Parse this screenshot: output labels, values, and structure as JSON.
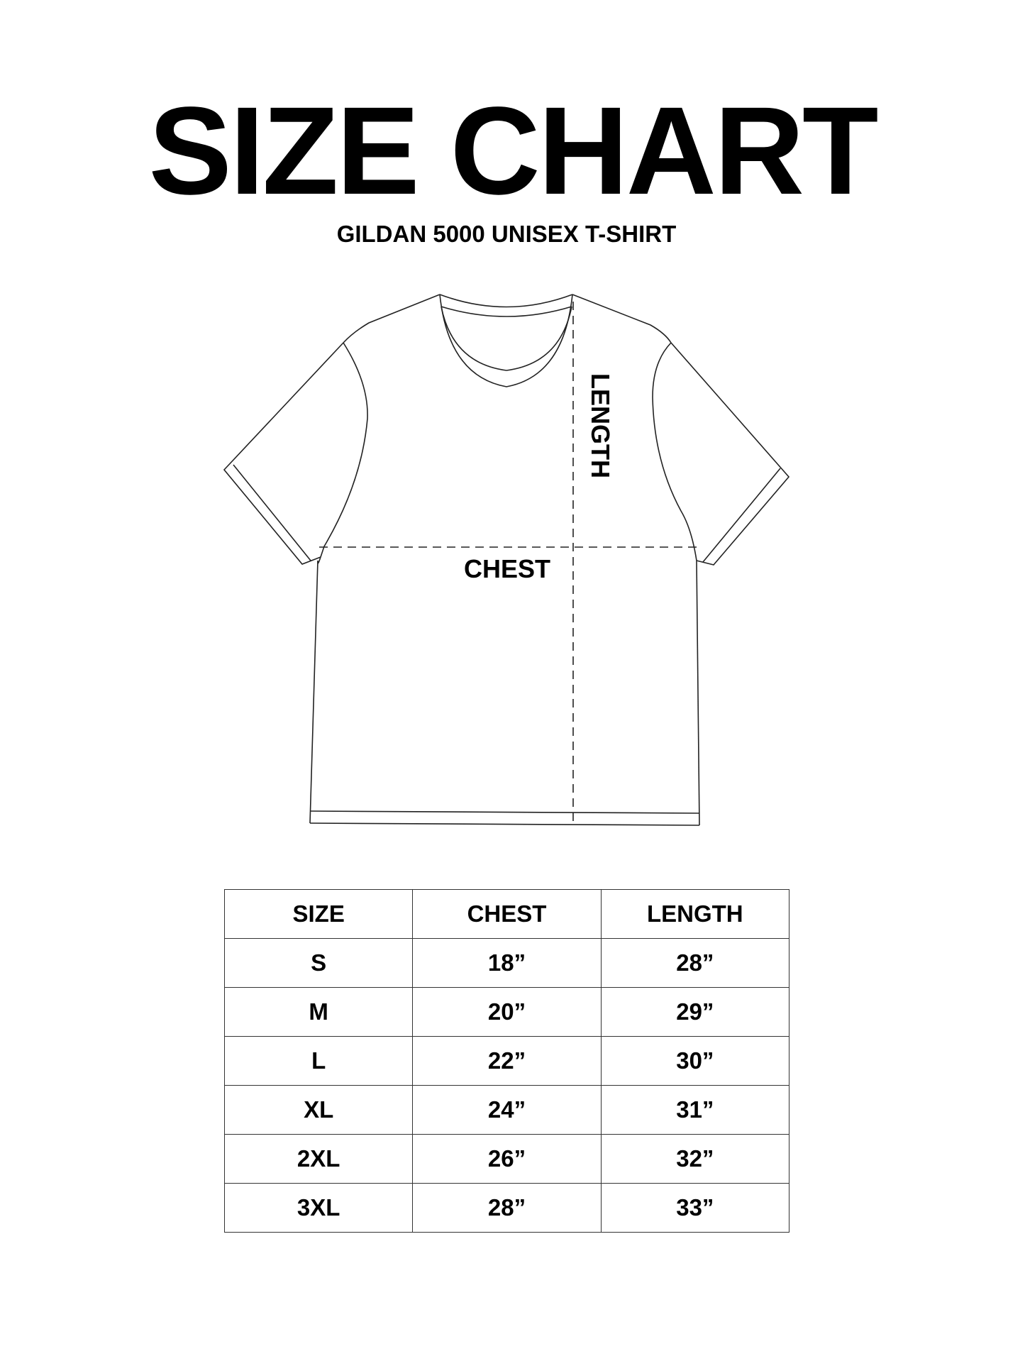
{
  "title": "SIZE CHART",
  "subtitle": "GILDAN 5000 UNISEX T-SHIRT",
  "diagram": {
    "chest_label": "CHEST",
    "length_label": "LENGTH"
  },
  "table": {
    "headers": [
      "SIZE",
      "CHEST",
      "LENGTH"
    ],
    "rows": [
      [
        "S",
        "18”",
        "28”"
      ],
      [
        "M",
        "20”",
        "29”"
      ],
      [
        "L",
        "22”",
        "30”"
      ],
      [
        "XL",
        "24”",
        "31”"
      ],
      [
        "2XL",
        "26”",
        "32”"
      ],
      [
        "3XL",
        "28”",
        "33”"
      ]
    ]
  }
}
